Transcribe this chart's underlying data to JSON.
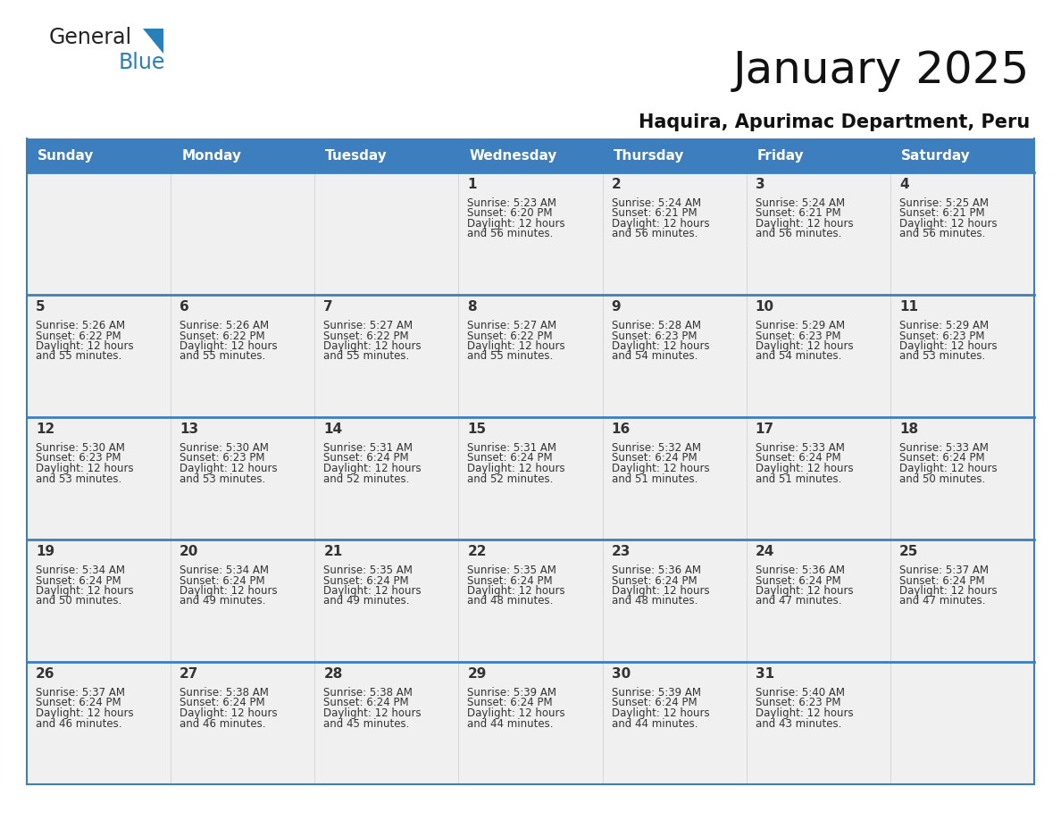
{
  "title": "January 2025",
  "subtitle": "Haquira, Apurimac Department, Peru",
  "header_bg": "#3d7ebf",
  "header_text_color": "#FFFFFF",
  "cell_bg": "#F0F0F0",
  "row_border_color": "#3d7ebf",
  "text_color": "#333333",
  "day_headers": [
    "Sunday",
    "Monday",
    "Tuesday",
    "Wednesday",
    "Thursday",
    "Friday",
    "Saturday"
  ],
  "days": [
    {
      "day": 1,
      "col": 3,
      "row": 0,
      "sunrise": "5:23 AM",
      "sunset": "6:20 PM",
      "daylight_hours": 12,
      "daylight_minutes": 56
    },
    {
      "day": 2,
      "col": 4,
      "row": 0,
      "sunrise": "5:24 AM",
      "sunset": "6:21 PM",
      "daylight_hours": 12,
      "daylight_minutes": 56
    },
    {
      "day": 3,
      "col": 5,
      "row": 0,
      "sunrise": "5:24 AM",
      "sunset": "6:21 PM",
      "daylight_hours": 12,
      "daylight_minutes": 56
    },
    {
      "day": 4,
      "col": 6,
      "row": 0,
      "sunrise": "5:25 AM",
      "sunset": "6:21 PM",
      "daylight_hours": 12,
      "daylight_minutes": 56
    },
    {
      "day": 5,
      "col": 0,
      "row": 1,
      "sunrise": "5:26 AM",
      "sunset": "6:22 PM",
      "daylight_hours": 12,
      "daylight_minutes": 55
    },
    {
      "day": 6,
      "col": 1,
      "row": 1,
      "sunrise": "5:26 AM",
      "sunset": "6:22 PM",
      "daylight_hours": 12,
      "daylight_minutes": 55
    },
    {
      "day": 7,
      "col": 2,
      "row": 1,
      "sunrise": "5:27 AM",
      "sunset": "6:22 PM",
      "daylight_hours": 12,
      "daylight_minutes": 55
    },
    {
      "day": 8,
      "col": 3,
      "row": 1,
      "sunrise": "5:27 AM",
      "sunset": "6:22 PM",
      "daylight_hours": 12,
      "daylight_minutes": 55
    },
    {
      "day": 9,
      "col": 4,
      "row": 1,
      "sunrise": "5:28 AM",
      "sunset": "6:23 PM",
      "daylight_hours": 12,
      "daylight_minutes": 54
    },
    {
      "day": 10,
      "col": 5,
      "row": 1,
      "sunrise": "5:29 AM",
      "sunset": "6:23 PM",
      "daylight_hours": 12,
      "daylight_minutes": 54
    },
    {
      "day": 11,
      "col": 6,
      "row": 1,
      "sunrise": "5:29 AM",
      "sunset": "6:23 PM",
      "daylight_hours": 12,
      "daylight_minutes": 53
    },
    {
      "day": 12,
      "col": 0,
      "row": 2,
      "sunrise": "5:30 AM",
      "sunset": "6:23 PM",
      "daylight_hours": 12,
      "daylight_minutes": 53
    },
    {
      "day": 13,
      "col": 1,
      "row": 2,
      "sunrise": "5:30 AM",
      "sunset": "6:23 PM",
      "daylight_hours": 12,
      "daylight_minutes": 53
    },
    {
      "day": 14,
      "col": 2,
      "row": 2,
      "sunrise": "5:31 AM",
      "sunset": "6:24 PM",
      "daylight_hours": 12,
      "daylight_minutes": 52
    },
    {
      "day": 15,
      "col": 3,
      "row": 2,
      "sunrise": "5:31 AM",
      "sunset": "6:24 PM",
      "daylight_hours": 12,
      "daylight_minutes": 52
    },
    {
      "day": 16,
      "col": 4,
      "row": 2,
      "sunrise": "5:32 AM",
      "sunset": "6:24 PM",
      "daylight_hours": 12,
      "daylight_minutes": 51
    },
    {
      "day": 17,
      "col": 5,
      "row": 2,
      "sunrise": "5:33 AM",
      "sunset": "6:24 PM",
      "daylight_hours": 12,
      "daylight_minutes": 51
    },
    {
      "day": 18,
      "col": 6,
      "row": 2,
      "sunrise": "5:33 AM",
      "sunset": "6:24 PM",
      "daylight_hours": 12,
      "daylight_minutes": 50
    },
    {
      "day": 19,
      "col": 0,
      "row": 3,
      "sunrise": "5:34 AM",
      "sunset": "6:24 PM",
      "daylight_hours": 12,
      "daylight_minutes": 50
    },
    {
      "day": 20,
      "col": 1,
      "row": 3,
      "sunrise": "5:34 AM",
      "sunset": "6:24 PM",
      "daylight_hours": 12,
      "daylight_minutes": 49
    },
    {
      "day": 21,
      "col": 2,
      "row": 3,
      "sunrise": "5:35 AM",
      "sunset": "6:24 PM",
      "daylight_hours": 12,
      "daylight_minutes": 49
    },
    {
      "day": 22,
      "col": 3,
      "row": 3,
      "sunrise": "5:35 AM",
      "sunset": "6:24 PM",
      "daylight_hours": 12,
      "daylight_minutes": 48
    },
    {
      "day": 23,
      "col": 4,
      "row": 3,
      "sunrise": "5:36 AM",
      "sunset": "6:24 PM",
      "daylight_hours": 12,
      "daylight_minutes": 48
    },
    {
      "day": 24,
      "col": 5,
      "row": 3,
      "sunrise": "5:36 AM",
      "sunset": "6:24 PM",
      "daylight_hours": 12,
      "daylight_minutes": 47
    },
    {
      "day": 25,
      "col": 6,
      "row": 3,
      "sunrise": "5:37 AM",
      "sunset": "6:24 PM",
      "daylight_hours": 12,
      "daylight_minutes": 47
    },
    {
      "day": 26,
      "col": 0,
      "row": 4,
      "sunrise": "5:37 AM",
      "sunset": "6:24 PM",
      "daylight_hours": 12,
      "daylight_minutes": 46
    },
    {
      "day": 27,
      "col": 1,
      "row": 4,
      "sunrise": "5:38 AM",
      "sunset": "6:24 PM",
      "daylight_hours": 12,
      "daylight_minutes": 46
    },
    {
      "day": 28,
      "col": 2,
      "row": 4,
      "sunrise": "5:38 AM",
      "sunset": "6:24 PM",
      "daylight_hours": 12,
      "daylight_minutes": 45
    },
    {
      "day": 29,
      "col": 3,
      "row": 4,
      "sunrise": "5:39 AM",
      "sunset": "6:24 PM",
      "daylight_hours": 12,
      "daylight_minutes": 44
    },
    {
      "day": 30,
      "col": 4,
      "row": 4,
      "sunrise": "5:39 AM",
      "sunset": "6:24 PM",
      "daylight_hours": 12,
      "daylight_minutes": 44
    },
    {
      "day": 31,
      "col": 5,
      "row": 4,
      "sunrise": "5:40 AM",
      "sunset": "6:23 PM",
      "daylight_hours": 12,
      "daylight_minutes": 43
    }
  ],
  "logo_text1": "General",
  "logo_text2": "Blue",
  "logo_color1": "#222222",
  "logo_color2": "#2980B9",
  "logo_triangle_color": "#2980B9",
  "fig_width": 11.88,
  "fig_height": 9.18,
  "dpi": 100
}
